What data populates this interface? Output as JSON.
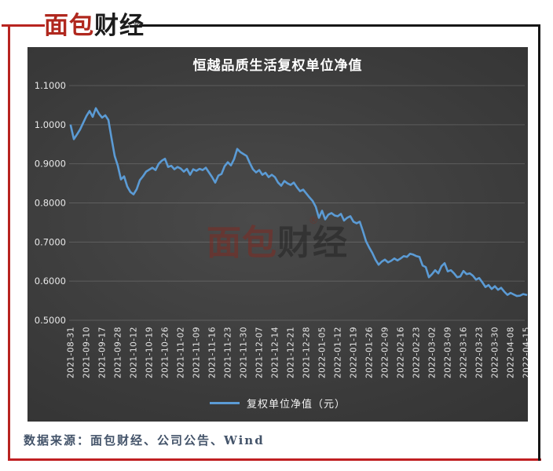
{
  "page": {
    "logo": {
      "text_red": "面包",
      "text_black": "财经",
      "registered_mark": "®"
    },
    "watermark": {
      "text_red": "面包",
      "text_dark": "财经",
      "registered_mark": "®"
    },
    "source_note": "数据来源：面包财经、公司公告、Wind",
    "colors": {
      "frame_red": "#b82420",
      "frame_black": "#161616",
      "logo_red": "#b0281e",
      "source_text": "#44546A",
      "panel_background": "#3a3a3a",
      "grid_line": "rgba(255,255,255,0.16)",
      "axis_text": "#e8e8e8",
      "series_blue": "#5B9BD5"
    }
  },
  "chart_data": {
    "type": "line",
    "title": "恒越品质生活复权单位净值",
    "xlabel": "",
    "ylabel": "",
    "ylim": [
      0.5,
      1.1
    ],
    "grid": true,
    "legend_position": "bottom",
    "legend": [
      {
        "label": "复权单位净值（元）",
        "color": "#5B9BD5"
      }
    ],
    "ytick_labels": [
      "1.1000",
      "1.0000",
      "0.9000",
      "0.8000",
      "0.7000",
      "0.6000",
      "0.5000"
    ],
    "xtick_labels": [
      "2021-08-31",
      "2021-09-10",
      "2021-09-17",
      "2021-09-28",
      "2021-10-12",
      "2021-10-19",
      "2021-10-26",
      "2021-11-02",
      "2021-11-09",
      "2021-11-16",
      "2021-11-23",
      "2021-11-30",
      "2021-12-07",
      "2021-12-14",
      "2021-12-21",
      "2021-12-28",
      "2022-01-05",
      "2022-01-12",
      "2022-01-19",
      "2022-01-26",
      "2022-02-09",
      "2022-02-16",
      "2022-02-23",
      "2022-03-02",
      "2022-03-09",
      "2022-03-16",
      "2022-03-23",
      "2022-03-30",
      "2022-04-08",
      "2022-04-15"
    ],
    "points_per_xtick": 5,
    "series": [
      {
        "name": "复权单位净值（元）",
        "color": "#5B9BD5",
        "values": [
          0.998,
          0.963,
          0.975,
          0.988,
          1.005,
          1.022,
          1.035,
          1.02,
          1.042,
          1.028,
          1.018,
          1.024,
          1.012,
          0.965,
          0.92,
          0.895,
          0.86,
          0.868,
          0.842,
          0.828,
          0.822,
          0.835,
          0.858,
          0.868,
          0.88,
          0.885,
          0.89,
          0.884,
          0.9,
          0.908,
          0.913,
          0.892,
          0.895,
          0.886,
          0.892,
          0.888,
          0.88,
          0.887,
          0.872,
          0.886,
          0.882,
          0.887,
          0.884,
          0.89,
          0.878,
          0.866,
          0.852,
          0.87,
          0.874,
          0.894,
          0.904,
          0.896,
          0.912,
          0.938,
          0.93,
          0.925,
          0.92,
          0.902,
          0.886,
          0.878,
          0.884,
          0.872,
          0.877,
          0.866,
          0.872,
          0.866,
          0.852,
          0.844,
          0.856,
          0.85,
          0.846,
          0.852,
          0.84,
          0.83,
          0.834,
          0.824,
          0.814,
          0.805,
          0.79,
          0.762,
          0.78,
          0.758,
          0.77,
          0.774,
          0.768,
          0.766,
          0.772,
          0.755,
          0.762,
          0.766,
          0.752,
          0.748,
          0.752,
          0.728,
          0.702,
          0.686,
          0.672,
          0.655,
          0.642,
          0.65,
          0.655,
          0.648,
          0.652,
          0.658,
          0.653,
          0.658,
          0.664,
          0.662,
          0.67,
          0.668,
          0.664,
          0.662,
          0.64,
          0.636,
          0.61,
          0.618,
          0.628,
          0.62,
          0.638,
          0.646,
          0.625,
          0.628,
          0.62,
          0.61,
          0.612,
          0.626,
          0.618,
          0.62,
          0.614,
          0.604,
          0.608,
          0.597,
          0.585,
          0.59,
          0.58,
          0.587,
          0.578,
          0.583,
          0.573,
          0.565,
          0.57,
          0.566,
          0.562,
          0.563,
          0.567,
          0.565
        ]
      }
    ]
  }
}
